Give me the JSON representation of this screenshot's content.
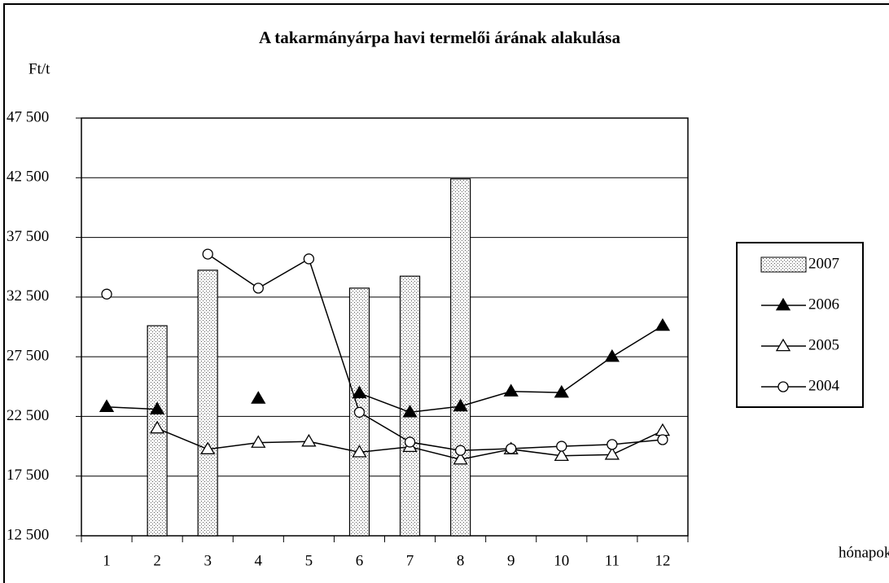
{
  "chart_data": {
    "type": "bar-line",
    "title": "A takarmányárpa havi termelői árának alakulása",
    "y_label": "Ft/t",
    "x_label": "hónapok",
    "categories": [
      "1",
      "2",
      "3",
      "4",
      "5",
      "6",
      "7",
      "8",
      "9",
      "10",
      "11",
      "12"
    ],
    "ylim": [
      12500,
      47500
    ],
    "yticks": [
      {
        "value": 12500,
        "label": "12 500"
      },
      {
        "value": 17500,
        "label": "17 500"
      },
      {
        "value": 22500,
        "label": "22 500"
      },
      {
        "value": 27500,
        "label": "27 500"
      },
      {
        "value": 32500,
        "label": "32 500"
      },
      {
        "value": 37500,
        "label": "37 500"
      },
      {
        "value": 42500,
        "label": "42 500"
      },
      {
        "value": 47500,
        "label": "47 500"
      }
    ],
    "grid": true,
    "legend": "right",
    "series": [
      {
        "name": "2007",
        "kind": "bar",
        "color": "#000000",
        "marker": "dotted",
        "values": [
          null,
          30100,
          34750,
          null,
          null,
          33250,
          34250,
          42400,
          null,
          null,
          null,
          null
        ]
      },
      {
        "name": "2006",
        "kind": "line",
        "color": "#000000",
        "marker": "triangle-filled",
        "values": [
          23300,
          23100,
          null,
          24000,
          null,
          24450,
          22850,
          23350,
          24600,
          24500,
          27500,
          30100
        ]
      },
      {
        "name": "2005",
        "kind": "line",
        "color": "#000000",
        "marker": "triangle-open",
        "values": [
          null,
          21500,
          19750,
          20300,
          20400,
          19500,
          19950,
          18900,
          19750,
          19200,
          19300,
          21300
        ]
      },
      {
        "name": "2004",
        "kind": "line",
        "color": "#000000",
        "marker": "circle-open",
        "values": [
          32750,
          null,
          36100,
          33250,
          35700,
          22850,
          20350,
          19650,
          19800,
          20000,
          20150,
          20550
        ]
      }
    ]
  }
}
